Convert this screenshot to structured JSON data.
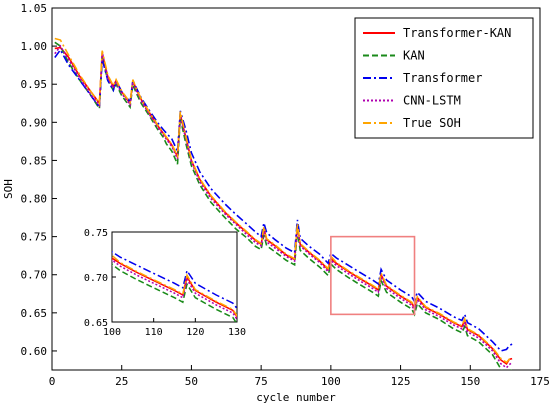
{
  "chart_data": {
    "type": "line",
    "title": "",
    "xlabel": "cycle number",
    "ylabel": "SOH",
    "xlim": [
      0,
      175
    ],
    "ylim": [
      0.575,
      1.05
    ],
    "xticks": [
      0,
      25,
      50,
      75,
      100,
      125,
      150,
      175
    ],
    "yticks": [
      0.6,
      0.65,
      0.7,
      0.75,
      0.8,
      0.85,
      0.9,
      0.95,
      1.0,
      1.05
    ],
    "ytick_labels": [
      "0.60",
      "0.65",
      "0.70",
      "0.75",
      "0.80",
      "0.85",
      "0.90",
      "0.95",
      "1.00",
      "1.05"
    ],
    "grid": false,
    "legend_position": "top-right",
    "x": [
      1,
      3,
      6,
      10,
      14,
      17,
      18,
      20,
      22,
      23,
      25,
      28,
      29,
      30,
      32,
      35,
      38,
      40,
      41,
      43,
      45,
      46,
      48,
      50,
      53,
      57,
      62,
      66,
      70,
      73,
      75,
      76,
      77,
      80,
      84,
      87,
      88,
      89,
      92,
      96,
      99,
      100,
      102,
      106,
      110,
      115,
      117,
      118,
      120,
      125,
      129,
      130,
      131,
      134,
      139,
      144,
      147,
      148,
      149,
      153,
      158,
      161,
      163,
      164,
      165
    ],
    "series": [
      {
        "name": "Transformer-KAN",
        "color": "#ff0000",
        "dash": "solid",
        "values": [
          0.997,
          0.998,
          0.985,
          0.96,
          0.94,
          0.925,
          0.99,
          0.96,
          0.947,
          0.955,
          0.94,
          0.925,
          0.955,
          0.945,
          0.93,
          0.912,
          0.895,
          0.885,
          0.88,
          0.87,
          0.855,
          0.91,
          0.88,
          0.85,
          0.825,
          0.803,
          0.782,
          0.768,
          0.755,
          0.745,
          0.74,
          0.76,
          0.746,
          0.738,
          0.726,
          0.72,
          0.765,
          0.74,
          0.73,
          0.718,
          0.707,
          0.721,
          0.715,
          0.705,
          0.696,
          0.685,
          0.68,
          0.7,
          0.685,
          0.672,
          0.663,
          0.656,
          0.67,
          0.657,
          0.648,
          0.637,
          0.632,
          0.64,
          0.628,
          0.62,
          0.603,
          0.588,
          0.583,
          0.589,
          0.59
        ]
      },
      {
        "name": "KAN",
        "color": "#1a8a1a",
        "dash": "6,3",
        "values": [
          1.005,
          1.0,
          0.978,
          0.955,
          0.935,
          0.918,
          0.985,
          0.955,
          0.942,
          0.95,
          0.935,
          0.92,
          0.95,
          0.94,
          0.925,
          0.908,
          0.89,
          0.88,
          0.872,
          0.862,
          0.845,
          0.905,
          0.872,
          0.843,
          0.818,
          0.795,
          0.775,
          0.76,
          0.748,
          0.737,
          0.733,
          0.752,
          0.738,
          0.73,
          0.719,
          0.713,
          0.758,
          0.732,
          0.722,
          0.71,
          0.699,
          0.714,
          0.707,
          0.697,
          0.688,
          0.677,
          0.672,
          0.692,
          0.677,
          0.664,
          0.655,
          0.648,
          0.662,
          0.65,
          0.641,
          0.629,
          0.624,
          0.632,
          0.62,
          0.612,
          0.595,
          0.576,
          0.568,
          0.572,
          0.577
        ]
      },
      {
        "name": "Transformer",
        "color": "#0000ee",
        "dash": "8,3,2,3",
        "values": [
          0.985,
          0.995,
          0.975,
          0.955,
          0.935,
          0.92,
          0.983,
          0.955,
          0.942,
          0.955,
          0.94,
          0.927,
          0.955,
          0.947,
          0.932,
          0.915,
          0.899,
          0.89,
          0.886,
          0.878,
          0.862,
          0.915,
          0.89,
          0.86,
          0.835,
          0.813,
          0.793,
          0.779,
          0.766,
          0.756,
          0.75,
          0.768,
          0.755,
          0.746,
          0.735,
          0.729,
          0.772,
          0.748,
          0.738,
          0.727,
          0.715,
          0.728,
          0.722,
          0.713,
          0.704,
          0.693,
          0.688,
          0.707,
          0.693,
          0.68,
          0.671,
          0.665,
          0.677,
          0.665,
          0.656,
          0.645,
          0.64,
          0.648,
          0.637,
          0.629,
          0.612,
          0.6,
          0.602,
          0.607,
          0.609
        ]
      },
      {
        "name": "CNN-LSTM",
        "color": "#b000b0",
        "dash": "2,2",
        "values": [
          0.99,
          1.0,
          0.982,
          0.958,
          0.936,
          0.922,
          0.992,
          0.958,
          0.945,
          0.952,
          0.938,
          0.923,
          0.953,
          0.943,
          0.928,
          0.91,
          0.893,
          0.883,
          0.878,
          0.868,
          0.852,
          0.908,
          0.878,
          0.848,
          0.822,
          0.8,
          0.78,
          0.766,
          0.752,
          0.742,
          0.738,
          0.757,
          0.743,
          0.735,
          0.724,
          0.718,
          0.762,
          0.738,
          0.728,
          0.716,
          0.704,
          0.719,
          0.712,
          0.702,
          0.693,
          0.682,
          0.677,
          0.697,
          0.682,
          0.669,
          0.66,
          0.653,
          0.667,
          0.654,
          0.645,
          0.634,
          0.629,
          0.637,
          0.625,
          0.617,
          0.6,
          0.583,
          0.578,
          0.582,
          0.585
        ]
      },
      {
        "name": "True SOH",
        "color": "#ffa500",
        "dash": "8,3,2,3",
        "values": [
          1.01,
          1.008,
          0.988,
          0.962,
          0.94,
          0.925,
          0.994,
          0.962,
          0.948,
          0.956,
          0.941,
          0.926,
          0.956,
          0.946,
          0.931,
          0.913,
          0.896,
          0.886,
          0.881,
          0.871,
          0.856,
          0.914,
          0.881,
          0.851,
          0.826,
          0.804,
          0.783,
          0.769,
          0.756,
          0.746,
          0.741,
          0.763,
          0.747,
          0.739,
          0.727,
          0.721,
          0.767,
          0.741,
          0.731,
          0.719,
          0.708,
          0.724,
          0.716,
          0.706,
          0.697,
          0.686,
          0.681,
          0.702,
          0.686,
          0.673,
          0.664,
          0.657,
          0.671,
          0.658,
          0.649,
          0.638,
          0.633,
          0.642,
          0.629,
          0.621,
          0.604,
          0.59,
          0.585,
          0.589,
          0.591
        ]
      }
    ],
    "highlight_region": {
      "x": [
        100,
        130
      ],
      "y": [
        0.648,
        0.75
      ],
      "color": "#f08080"
    },
    "inset": {
      "xlim": [
        100,
        130
      ],
      "ylim": [
        0.65,
        0.75
      ],
      "xticks": [
        100,
        110,
        120,
        130
      ],
      "yticks": [
        0.65,
        0.7,
        0.75
      ],
      "ytick_labels": [
        "0.65",
        "0.70",
        "0.75"
      ]
    }
  }
}
